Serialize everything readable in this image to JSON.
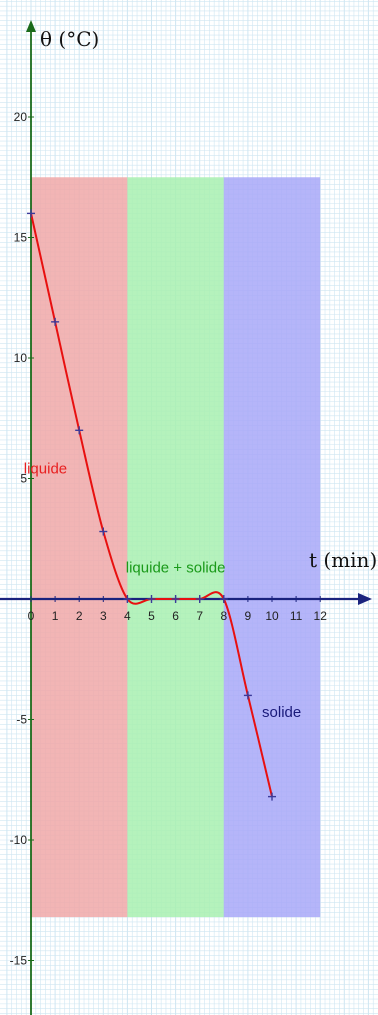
{
  "chart_data": {
    "type": "line",
    "title": "",
    "ylabel": "θ (°C)",
    "xlabel": "t  (min)",
    "xlim": [
      -0.6,
      14
    ],
    "ylim": [
      -17.5,
      24.5
    ],
    "x_ticks": [
      0,
      1,
      2,
      3,
      4,
      5,
      6,
      7,
      8,
      9,
      10,
      11,
      12
    ],
    "y_ticks": [
      20,
      15,
      10,
      5,
      -5,
      -10,
      -15
    ],
    "x_tick_labels": [
      "0",
      "1",
      "2",
      "3",
      "4",
      "5",
      "6",
      "7",
      "8",
      "9",
      "10",
      "11",
      "12"
    ],
    "y_tick_labels": [
      "20",
      "15",
      "10",
      "5",
      "-5",
      "-10",
      "-15"
    ],
    "grid": true,
    "series": [
      {
        "x": [
          0,
          1,
          2,
          3,
          4,
          5,
          6,
          7,
          8,
          9,
          10
        ],
        "y": [
          16,
          11.5,
          7,
          2.8,
          0,
          0,
          0,
          0,
          0,
          -4,
          -8.2
        ],
        "color": "#e81010"
      }
    ],
    "regions": [
      {
        "label": "liquide",
        "x_from": 0,
        "x_to": 4,
        "y_from": -13.2,
        "y_to": 17.5,
        "color": "#f0a8a8",
        "label_color": "#e82020",
        "label_x": 0.6,
        "label_y": 5.2
      },
      {
        "label": "liquide + solide",
        "x_from": 4,
        "x_to": 8,
        "y_from": -13.2,
        "y_to": 17.5,
        "color": "#a8f0b0",
        "label_color": "#1a9a1a",
        "label_x": 6.0,
        "label_y": 1.1
      },
      {
        "label": "solide",
        "x_from": 8,
        "x_to": 12,
        "y_from": -13.2,
        "y_to": 17.5,
        "color": "#a8a8f8",
        "label_color": "#1a1a7a",
        "label_x": 10.4,
        "label_y": -4.9
      }
    ],
    "colors": {
      "grid": "#cfe6f2",
      "axis_x": "#1a237e",
      "axis_y": "#1b6b1b",
      "marker": "#3a3a9a"
    }
  }
}
